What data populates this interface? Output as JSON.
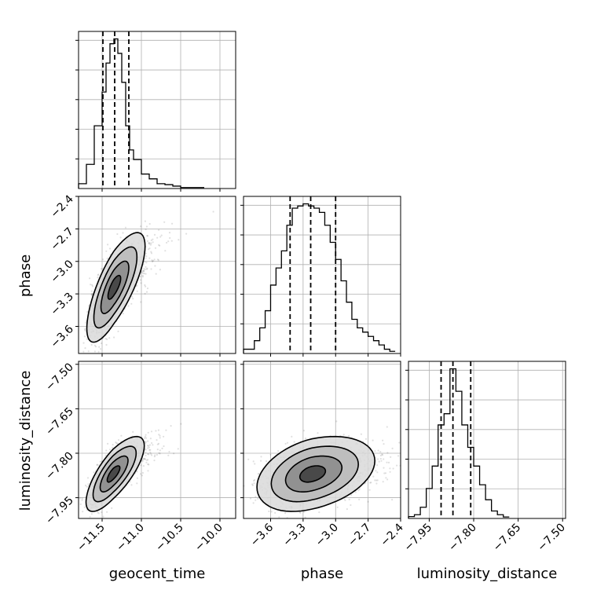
{
  "chart_data": {
    "type": "corner",
    "parameters": [
      "geocent_time",
      "phase",
      "luminosity_distance"
    ],
    "axis_labels": {
      "geocent_time": "geocent_time",
      "phase": "phase",
      "luminosity_distance": "luminosity_distance"
    },
    "ranges": {
      "geocent_time": [
        -11.8,
        -9.8
      ],
      "phase": [
        -3.85,
        -2.4
      ],
      "luminosity_distance": [
        -8.02,
        -7.49
      ]
    },
    "ticks": {
      "geocent_time": {
        "values": [
          -11.5,
          -11.0,
          -10.5,
          -10.0
        ],
        "labels": [
          "−11.5",
          "−11.0",
          "−10.5",
          "−10.0"
        ]
      },
      "phase": {
        "values": [
          -3.6,
          -3.3,
          -3.0,
          -2.7,
          -2.4
        ],
        "labels": [
          "−3.6",
          "−3.3",
          "−3.0",
          "−2.7",
          "−2.4"
        ]
      },
      "luminosity_distance": {
        "values": [
          -7.95,
          -7.8,
          -7.65,
          -7.5
        ],
        "labels": [
          "−7.95",
          "−7.80",
          "−7.65",
          "−7.50"
        ]
      }
    },
    "grid": true,
    "marginals": {
      "geocent_time": {
        "quantiles": [
          -11.49,
          -11.34,
          -11.16
        ],
        "bins": [
          -11.8,
          -11.7,
          -11.6,
          -11.5,
          -11.45,
          -11.4,
          -11.35,
          -11.3,
          -11.25,
          -11.2,
          -11.15,
          -11.1,
          -11.0,
          -10.9,
          -10.8,
          -10.7,
          -10.6,
          -10.5,
          -10.2
        ],
        "counts": [
          1,
          5,
          13,
          20,
          26,
          30,
          31,
          28,
          22,
          13,
          8,
          6,
          3,
          2,
          1,
          0.8,
          0.5,
          0.2
        ]
      },
      "phase": {
        "quantiles": [
          -3.42,
          -3.23,
          -3.0
        ],
        "bins": [
          -3.85,
          -3.75,
          -3.7,
          -3.65,
          -3.6,
          -3.55,
          -3.5,
          -3.45,
          -3.4,
          -3.35,
          -3.3,
          -3.25,
          -3.2,
          -3.15,
          -3.1,
          -3.05,
          -3.0,
          -2.95,
          -2.9,
          -2.85,
          -2.8,
          -2.75,
          -2.7,
          -2.65,
          -2.6,
          -2.55,
          -2.5,
          -2.45
        ],
        "counts": [
          1,
          3,
          6,
          10,
          16,
          20,
          24,
          30,
          34,
          34.5,
          35,
          34.5,
          34,
          33,
          30,
          26,
          22,
          17,
          12,
          8,
          6,
          5,
          4,
          3,
          2,
          1,
          0.5
        ]
      },
      "luminosity_distance": {
        "quantiles": [
          -7.91,
          -7.87,
          -7.81
        ],
        "bins": [
          -8.02,
          -8.0,
          -7.98,
          -7.96,
          -7.94,
          -7.92,
          -7.9,
          -7.88,
          -7.86,
          -7.84,
          -7.82,
          -7.8,
          -7.78,
          -7.76,
          -7.74,
          -7.72,
          -7.7,
          -7.68
        ],
        "counts": [
          0.5,
          1,
          3,
          8,
          14,
          25,
          28,
          40,
          34,
          25,
          19,
          14,
          9,
          5,
          2,
          1,
          0.4
        ]
      }
    },
    "joint": [
      {
        "x": "geocent_time",
        "y": "phase",
        "center": [
          -11.35,
          -3.24
        ],
        "sigma": [
          0.15,
          0.22
        ],
        "rho": 0.75
      },
      {
        "x": "geocent_time",
        "y": "luminosity_distance",
        "center": [
          -11.36,
          -7.87
        ],
        "sigma": [
          0.15,
          0.055
        ],
        "rho": 0.75
      },
      {
        "x": "phase",
        "y": "luminosity_distance",
        "center": [
          -3.22,
          -7.87
        ],
        "sigma": [
          0.22,
          0.055
        ],
        "rho": 0.35
      }
    ]
  }
}
